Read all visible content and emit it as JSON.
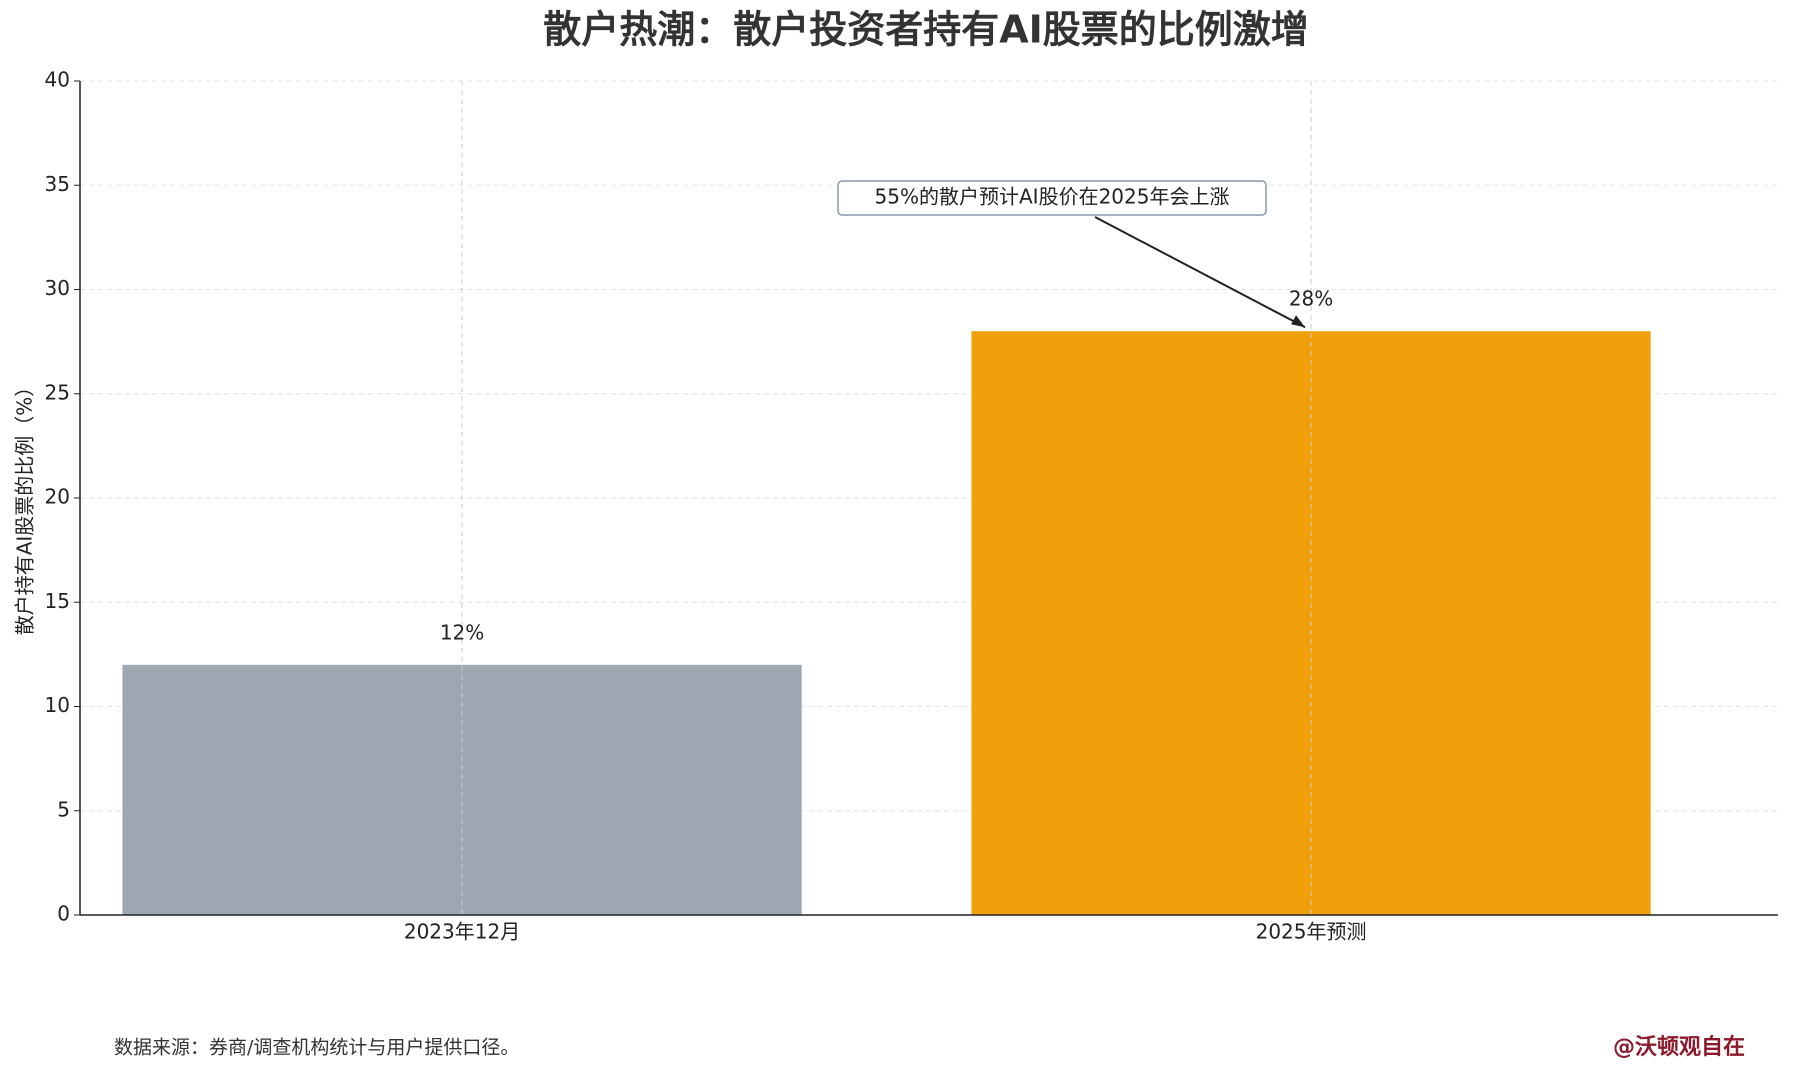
{
  "chart_data": {
    "type": "bar",
    "title": "散户热潮：散户投资者持有AI股票的比例激增",
    "ylabel": "散户持有AI股票的比例（%）",
    "categories": [
      "2023年12月",
      "2025年预测"
    ],
    "values": [
      12,
      28
    ],
    "value_labels": [
      "12%",
      "28%"
    ],
    "colors": [
      "#9ea7b1",
      "#f0a00a"
    ],
    "ylim": [
      0,
      40
    ],
    "yticks": [
      0,
      5,
      10,
      15,
      20,
      25,
      30,
      35,
      40
    ],
    "grid": true,
    "annotation": "55%的散户预计AI股价在2025年会上涨",
    "source": "数据来源：券商/调查机构统计与用户提供口径。",
    "watermark": "@沃顿观自在"
  }
}
